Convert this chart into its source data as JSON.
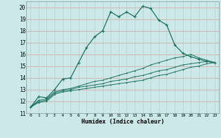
{
  "xlabel": "Humidex (Indice chaleur)",
  "bg_color": "#cce8e8",
  "grid_color_h": "#d4a0a0",
  "grid_color_v": "#b8cccc",
  "line_color": "#1a7060",
  "xlim": [
    -0.5,
    23.5
  ],
  "ylim": [
    11,
    20.5
  ],
  "yticks": [
    11,
    12,
    13,
    14,
    15,
    16,
    17,
    18,
    19,
    20
  ],
  "xticks": [
    0,
    1,
    2,
    3,
    4,
    5,
    6,
    7,
    8,
    9,
    10,
    11,
    12,
    13,
    14,
    15,
    16,
    17,
    18,
    19,
    20,
    21,
    22,
    23
  ],
  "series": [
    {
      "x": [
        0,
        1,
        2,
        3,
        4,
        5,
        6,
        7,
        8,
        9,
        10,
        11,
        12,
        13,
        14,
        15,
        16,
        17,
        18,
        19,
        20,
        21,
        22,
        23
      ],
      "y": [
        11.5,
        12.4,
        12.3,
        13.0,
        13.9,
        14.0,
        15.3,
        16.6,
        17.5,
        18.0,
        19.6,
        19.2,
        19.6,
        19.2,
        20.1,
        19.9,
        18.9,
        18.5,
        16.8,
        16.1,
        15.8,
        15.6,
        15.4,
        15.3
      ]
    },
    {
      "x": [
        0,
        1,
        2,
        3,
        4,
        5,
        6,
        7,
        8,
        9,
        10,
        11,
        12,
        13,
        14,
        15,
        16,
        17,
        18,
        19,
        20,
        21,
        22,
        23
      ],
      "y": [
        11.5,
        12.1,
        12.2,
        12.8,
        13.0,
        13.1,
        13.3,
        13.5,
        13.7,
        13.8,
        14.0,
        14.2,
        14.4,
        14.6,
        14.8,
        15.1,
        15.3,
        15.5,
        15.7,
        15.8,
        16.0,
        15.7,
        15.5,
        15.3
      ]
    },
    {
      "x": [
        0,
        1,
        2,
        3,
        4,
        5,
        6,
        7,
        8,
        9,
        10,
        11,
        12,
        13,
        14,
        15,
        16,
        17,
        18,
        19,
        20,
        21,
        22,
        23
      ],
      "y": [
        11.5,
        12.0,
        12.1,
        12.7,
        12.9,
        13.0,
        13.2,
        13.3,
        13.4,
        13.5,
        13.7,
        13.8,
        13.9,
        14.1,
        14.2,
        14.4,
        14.6,
        14.7,
        14.9,
        15.1,
        15.2,
        15.3,
        15.4,
        15.3
      ]
    },
    {
      "x": [
        0,
        1,
        2,
        3,
        4,
        5,
        6,
        7,
        8,
        9,
        10,
        11,
        12,
        13,
        14,
        15,
        16,
        17,
        18,
        19,
        20,
        21,
        22,
        23
      ],
      "y": [
        11.5,
        11.9,
        12.0,
        12.6,
        12.8,
        12.9,
        13.0,
        13.1,
        13.2,
        13.3,
        13.4,
        13.5,
        13.6,
        13.7,
        13.8,
        14.0,
        14.2,
        14.3,
        14.5,
        14.7,
        14.9,
        15.0,
        15.2,
        15.3
      ]
    }
  ]
}
